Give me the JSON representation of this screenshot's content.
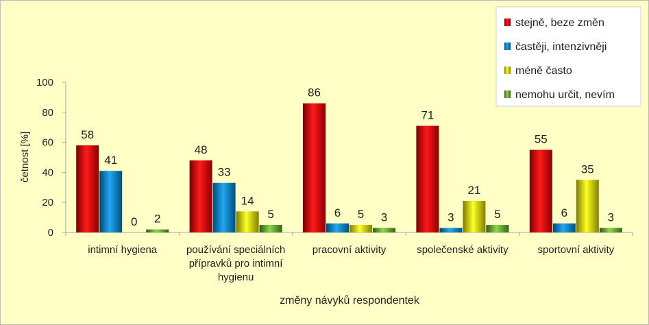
{
  "chart_data": {
    "type": "bar",
    "title": "",
    "xlabel": "změny návyků respondentek",
    "ylabel": "četnost [%]",
    "ylim": [
      0,
      100
    ],
    "yticks": [
      0,
      20,
      40,
      60,
      80,
      100
    ],
    "grid": false,
    "legend_position": "top-right",
    "categories": [
      [
        "intimní hygiena"
      ],
      [
        "používání speciálních",
        "přípravků pro intimní",
        "hygienu"
      ],
      [
        "pracovní aktivity"
      ],
      [
        "společenské aktivity"
      ],
      [
        "sportovní aktivity"
      ]
    ],
    "series": [
      {
        "name": "stejně, beze změn",
        "color": "#e00000",
        "values": [
          58,
          48,
          86,
          71,
          55
        ]
      },
      {
        "name": "častěji, intenzivněji",
        "color": "#0a82c8",
        "values": [
          41,
          33,
          6,
          3,
          6
        ]
      },
      {
        "name": "méně často",
        "color": "#e6e600",
        "values": [
          0,
          14,
          5,
          21,
          35
        ]
      },
      {
        "name": "nemohu určit, nevím",
        "color": "#64a832",
        "values": [
          2,
          5,
          3,
          5,
          3
        ]
      }
    ]
  }
}
